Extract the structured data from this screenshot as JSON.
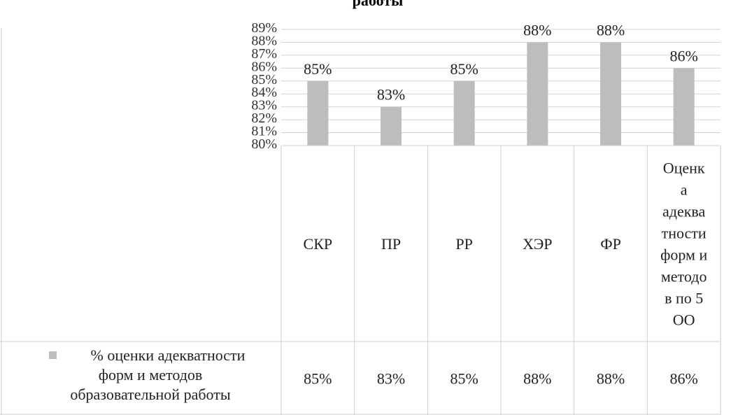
{
  "chart_data": {
    "type": "bar",
    "title": "работы",
    "categories": [
      "СКР",
      "ПР",
      "РР",
      "ХЭР",
      "ФР",
      "Оценка адекватности форм и методов по 5 ОО"
    ],
    "category_display_lines": [
      [
        "СКР"
      ],
      [
        "ПР"
      ],
      [
        "РР"
      ],
      [
        "ХЭР"
      ],
      [
        "ФР"
      ],
      [
        "Оценк",
        "а",
        "адеква",
        "тности",
        "форм и",
        "методо",
        "в по 5",
        "ОО"
      ]
    ],
    "series": [
      {
        "name": "% оценки адекватности форм и методов образовательной работы",
        "name_lines": [
          "% оценки адекватности",
          "форм и методов",
          "образовательной работы"
        ],
        "values": [
          85,
          83,
          85,
          88,
          88,
          86
        ],
        "labels": [
          "85%",
          "83%",
          "85%",
          "88%",
          "88%",
          "86%"
        ],
        "color": "#bdbdbd"
      }
    ],
    "ylim": [
      80,
      89
    ],
    "yticks": [
      "80%",
      "81%",
      "82%",
      "83%",
      "84%",
      "85%",
      "86%",
      "87%",
      "88%",
      "89%"
    ],
    "data_table": true,
    "legend_position": "left of data table",
    "grid": true
  }
}
